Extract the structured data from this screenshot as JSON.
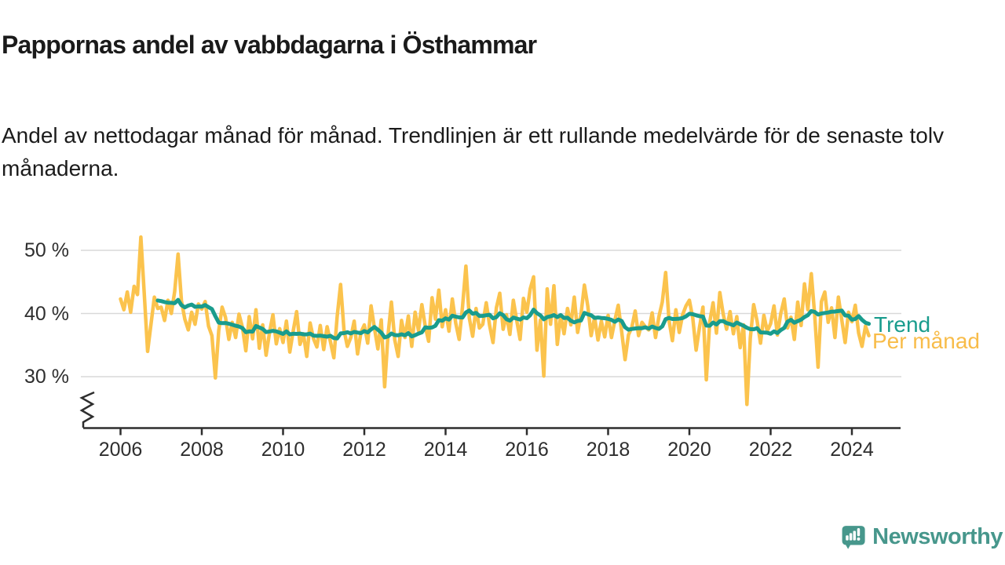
{
  "header": {
    "title": "Pappornas andel av vabbdagarna i Östhammar",
    "subtitle": "Andel av nettodagar månad för månad. Trendlinjen är ett rullande medelvärde för de senaste tolv månaderna."
  },
  "footer": {
    "brand": "Newsworthy",
    "brand_color": "#47978c"
  },
  "chart_data": {
    "type": "line",
    "title": "Pappornas andel av vabbdagarna i Östhammar",
    "unit": "%",
    "x_start": "2006-01",
    "x_end": "2024-06",
    "x_tick_labels": [
      "2006",
      "2008",
      "2010",
      "2012",
      "2014",
      "2016",
      "2018",
      "2020",
      "2022",
      "2024"
    ],
    "y_tick_labels": [
      "50 %",
      "40 %",
      "30 %"
    ],
    "y_tick_values": [
      50,
      40,
      30
    ],
    "ylim_display": [
      24,
      53
    ],
    "axis_break": true,
    "grid": "horizontal",
    "legend_position": "right-of-line-end",
    "axis_color": "#2e2e2e",
    "grid_color": "#d9d9d9",
    "series": [
      {
        "name": "Per månad",
        "color": "#fbc34d",
        "label_color": "#f8bc49",
        "cadence": "monthly",
        "values": [
          42.3,
          40.6,
          43.4,
          40.2,
          44.3,
          43.0,
          52.1,
          43.2,
          34.0,
          38.3,
          42.6,
          40.8,
          41.0,
          38.9,
          42.1,
          40.0,
          43.5,
          49.4,
          42.0,
          39.1,
          37.4,
          40.2,
          38.3,
          41.5,
          40.7,
          41.9,
          38.0,
          36.5,
          29.8,
          37.3,
          41.0,
          39.4,
          35.9,
          38.6,
          36.2,
          39.9,
          37.8,
          34.1,
          39.5,
          36.0,
          40.6,
          34.5,
          38.2,
          33.4,
          37.0,
          39.8,
          35.2,
          37.6,
          35.4,
          38.8,
          33.9,
          37.2,
          40.3,
          35.1,
          36.8,
          33.2,
          38.5,
          36.0,
          34.7,
          38.1,
          34.3,
          37.9,
          35.5,
          33.0,
          39.6,
          44.6,
          37.4,
          34.8,
          36.2,
          38.8,
          33.6,
          37.0,
          38.2,
          35.3,
          41.2,
          37.7,
          34.4,
          39.0,
          28.4,
          36.6,
          41.8,
          35.8,
          33.2,
          38.9,
          36.2,
          39.6,
          34.8,
          40.2,
          37.3,
          41.4,
          38.0,
          35.6,
          42.5,
          39.1,
          43.7,
          37.9,
          40.6,
          37.2,
          42.3,
          38.5,
          35.9,
          41.1,
          47.5,
          39.3,
          36.4,
          40.8,
          37.7,
          38.3,
          41.7,
          38.1,
          35.4,
          40.9,
          43.2,
          37.5,
          39.8,
          36.7,
          42.1,
          38.9,
          35.9,
          42.4,
          40.2,
          43.9,
          45.8,
          34.2,
          39.0,
          30.1,
          43.9,
          38.3,
          44.4,
          35.1,
          39.7,
          36.8,
          40.8,
          38.2,
          42.6,
          37.0,
          39.9,
          44.5,
          41.2,
          36.5,
          39.4,
          35.8,
          38.8,
          36.3,
          39.7,
          36.2,
          38.9,
          41.3,
          37.1,
          32.7,
          36.6,
          37.8,
          40.4,
          36.5,
          38.6,
          37.9,
          37.4,
          40.1,
          36.2,
          39.5,
          41.8,
          46.5,
          38.9,
          35.7,
          40.6,
          37.0,
          39.8,
          41.2,
          42.1,
          39.3,
          34.2,
          37.8,
          41.0,
          29.5,
          38.6,
          41.7,
          36.9,
          43.3,
          39.9,
          37.5,
          40.3,
          36.8,
          39.5,
          34.6,
          38.2,
          25.6,
          36.1,
          41.4,
          38.8,
          35.3,
          39.7,
          37.2,
          38.4,
          41.2,
          36.6,
          40.0,
          42.3,
          37.7,
          39.4,
          35.9,
          41.8,
          38.1,
          44.7,
          40.6,
          46.3,
          39.8,
          31.5,
          41.9,
          43.4,
          38.6,
          40.9,
          36.2,
          42.6,
          39.0,
          35.4,
          40.2,
          38.7,
          41.3,
          36.9,
          34.8,
          38.0,
          36.5
        ]
      },
      {
        "name": "Trend",
        "color": "#199c8d",
        "label_color": "#199c8d",
        "derived": "rolling mean of the last 12 months of 'Per månad', plotted from 2006-12"
      }
    ]
  }
}
